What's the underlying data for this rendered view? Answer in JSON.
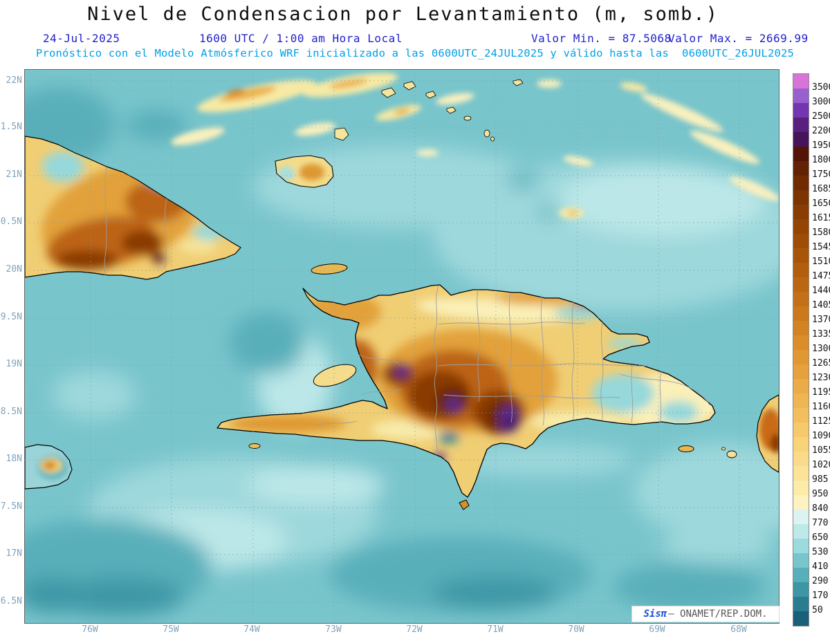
{
  "title": "Nivel de Condensacion por Levantamiento (m, somb.)",
  "header": {
    "date": "24-Jul-2025",
    "local_time": "1600 UTC / 1:00 am Hora Local",
    "valor_min": "Valor Min. = 87.5068",
    "valor_max": "Valor Max. = 2669.99",
    "model_line": "Pronóstico con el Modelo Atmósferico WRF inicializado a las 0600UTC_24JUL2025 y válido hasta las  0600UTC_26JUL2025"
  },
  "axes": {
    "lat_labels": [
      "22N",
      "1.5N",
      "21N",
      "0.5N",
      "20N",
      "9.5N",
      "19N",
      "8.5N",
      "18N",
      "7.5N",
      "17N",
      "6.5N"
    ],
    "lon_labels": [
      "76W",
      "75W",
      "74W",
      "73W",
      "72W",
      "71W",
      "70W",
      "69W",
      "68W"
    ]
  },
  "colorbar": {
    "tick_labels": [
      "3500",
      "3000",
      "2500",
      "2200",
      "1950",
      "1800",
      "1750",
      "1685",
      "1650",
      "1615",
      "1580",
      "1545",
      "1510",
      "1475",
      "1440",
      "1405",
      "1370",
      "1335",
      "1300",
      "1265",
      "1230",
      "1195",
      "1160",
      "1125",
      "1090",
      "1055",
      "1020",
      "985",
      "950",
      "840",
      "770",
      "650",
      "530",
      "410",
      "290",
      "170",
      "50"
    ],
    "colors": [
      "#D874D8",
      "#9760CE",
      "#7436B0",
      "#58217F",
      "#45155A",
      "#531407",
      "#652104",
      "#712B03",
      "#7D3402",
      "#893D02",
      "#944504",
      "#9E4D06",
      "#A85509",
      "#B25E0D",
      "#BB6711",
      "#C47016",
      "#CC791C",
      "#D48322",
      "#DB8D2A",
      "#E19732",
      "#E6A13C",
      "#EBAB46",
      "#EFB552",
      "#F3BF5E",
      "#F6C96C",
      "#F8D37A",
      "#FADB89",
      "#FCE398",
      "#FDEBA9",
      "#FEF3C0",
      "#DCF3F1",
      "#BDE9E9",
      "#9BDADD",
      "#79C5CC",
      "#58AFBA",
      "#3D96A5",
      "#2A7C90",
      "#1B607A"
    ]
  },
  "watermark": {
    "brand": "Sisπ",
    "rest": "– ONAMET/REP.DOM."
  },
  "chart_data": {
    "type": "heatmap",
    "title": "Nivel de Condensacion por Levantamiento (m, somb.)",
    "units": "m",
    "value_min": 87.5068,
    "value_max": 2669.99,
    "levels": [
      50,
      170,
      290,
      410,
      530,
      650,
      770,
      840,
      950,
      985,
      1020,
      1055,
      1090,
      1125,
      1160,
      1195,
      1230,
      1265,
      1300,
      1335,
      1370,
      1405,
      1440,
      1475,
      1510,
      1545,
      1580,
      1615,
      1650,
      1685,
      1750,
      1800,
      1950,
      2200,
      2500,
      3000,
      3500
    ],
    "legend_position": "right",
    "grid": true
  }
}
